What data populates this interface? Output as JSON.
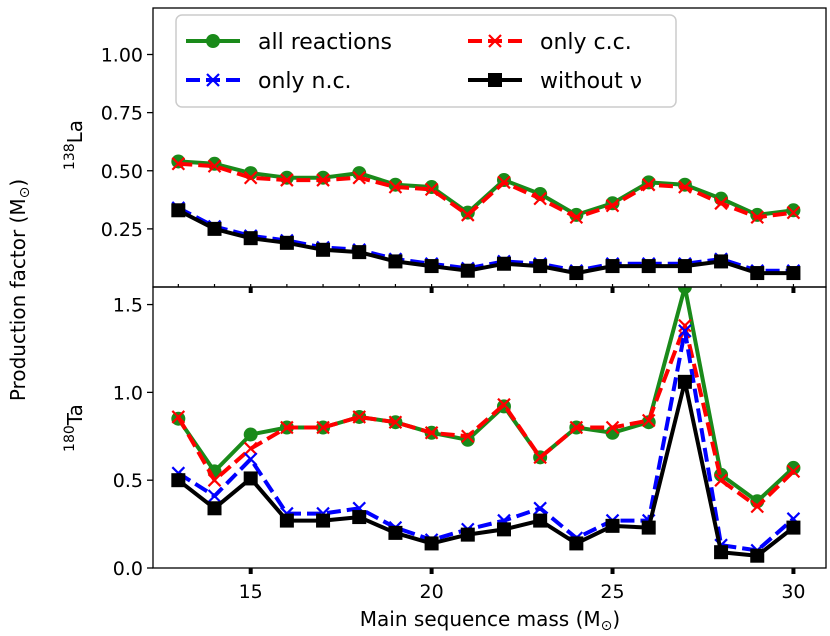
{
  "chart_data": [
    {
      "type": "line",
      "panel": "top",
      "ylabel_main": "La",
      "ylabel_sup": "138",
      "ylim": [
        0.0,
        1.2
      ],
      "yticks": [
        "0.25",
        "0.50",
        "0.75",
        "1.00"
      ],
      "x": [
        13,
        14,
        15,
        16,
        17,
        18,
        19,
        20,
        21,
        22,
        23,
        24,
        25,
        26,
        27,
        28,
        29,
        30
      ],
      "series": [
        {
          "key": "all",
          "name": "all reactions",
          "color": "#1a8a1a",
          "marker": "circle",
          "dash": "solid",
          "values": [
            0.54,
            0.53,
            0.49,
            0.47,
            0.47,
            0.49,
            0.44,
            0.43,
            0.32,
            0.46,
            0.4,
            0.31,
            0.36,
            0.45,
            0.44,
            0.38,
            0.31,
            0.33
          ]
        },
        {
          "key": "cc",
          "name": "only c.c.",
          "color": "#ff0000",
          "marker": "x",
          "dash": "dashed",
          "values": [
            0.53,
            0.52,
            0.47,
            0.46,
            0.46,
            0.47,
            0.43,
            0.42,
            0.31,
            0.45,
            0.38,
            0.3,
            0.35,
            0.44,
            0.43,
            0.36,
            0.3,
            0.32
          ]
        },
        {
          "key": "nc",
          "name": "only n.c.",
          "color": "#0000ff",
          "marker": "x",
          "dash": "dashed",
          "values": [
            0.34,
            0.26,
            0.22,
            0.2,
            0.17,
            0.16,
            0.12,
            0.1,
            0.08,
            0.11,
            0.1,
            0.07,
            0.1,
            0.1,
            0.1,
            0.12,
            0.07,
            0.07
          ]
        },
        {
          "key": "nonu",
          "name": "without ν",
          "color": "#000000",
          "marker": "square",
          "dash": "solid",
          "values": [
            0.33,
            0.25,
            0.21,
            0.19,
            0.16,
            0.15,
            0.11,
            0.09,
            0.07,
            0.1,
            0.09,
            0.06,
            0.09,
            0.09,
            0.09,
            0.11,
            0.06,
            0.06
          ]
        }
      ]
    },
    {
      "type": "line",
      "panel": "bottom",
      "ylabel_main": "Ta",
      "ylabel_sup": "180",
      "ylim": [
        0.0,
        1.6
      ],
      "yticks": [
        "0.0",
        "0.5",
        "1.0",
        "1.5"
      ],
      "x": [
        13,
        14,
        15,
        16,
        17,
        18,
        19,
        20,
        21,
        22,
        23,
        24,
        25,
        26,
        27,
        28,
        29,
        30
      ],
      "series": [
        {
          "key": "all",
          "name": "all reactions",
          "color": "#1a8a1a",
          "marker": "circle",
          "dash": "solid",
          "values": [
            0.85,
            0.55,
            0.76,
            0.8,
            0.8,
            0.86,
            0.83,
            0.77,
            0.73,
            0.92,
            0.63,
            0.8,
            0.77,
            0.83,
            1.6,
            0.53,
            0.38,
            0.57
          ]
        },
        {
          "key": "cc",
          "name": "only c.c.",
          "color": "#ff0000",
          "marker": "x",
          "dash": "dashed",
          "values": [
            0.86,
            0.5,
            0.68,
            0.8,
            0.8,
            0.86,
            0.83,
            0.77,
            0.75,
            0.93,
            0.63,
            0.8,
            0.8,
            0.84,
            1.38,
            0.5,
            0.35,
            0.55
          ]
        },
        {
          "key": "nc",
          "name": "only n.c.",
          "color": "#0000ff",
          "marker": "x",
          "dash": "dashed",
          "values": [
            0.54,
            0.41,
            0.62,
            0.31,
            0.31,
            0.34,
            0.23,
            0.16,
            0.22,
            0.27,
            0.34,
            0.17,
            0.27,
            0.27,
            1.35,
            0.13,
            0.1,
            0.28
          ]
        },
        {
          "key": "nonu",
          "name": "without ν",
          "color": "#000000",
          "marker": "square",
          "dash": "solid",
          "values": [
            0.5,
            0.34,
            0.51,
            0.27,
            0.27,
            0.29,
            0.2,
            0.14,
            0.19,
            0.22,
            0.27,
            0.14,
            0.24,
            0.23,
            1.06,
            0.09,
            0.07,
            0.23
          ]
        }
      ]
    }
  ],
  "xaxis": {
    "label": "Main sequence mass (M",
    "label_sub": "⊙",
    "label_close": ")",
    "ticks": [
      "15",
      "20",
      "25",
      "30"
    ],
    "xlim": [
      12.3,
      30.9
    ]
  },
  "shared_ylabel": {
    "text": "Production factor (M",
    "sub": "⊙",
    "close": ")"
  },
  "legend": {
    "location": "top-left",
    "entries": [
      {
        "key": "all",
        "label": "all reactions"
      },
      {
        "key": "cc",
        "label": "only c.c."
      },
      {
        "key": "nc",
        "label": "only n.c."
      },
      {
        "key": "nonu",
        "label": "without ν"
      }
    ]
  }
}
